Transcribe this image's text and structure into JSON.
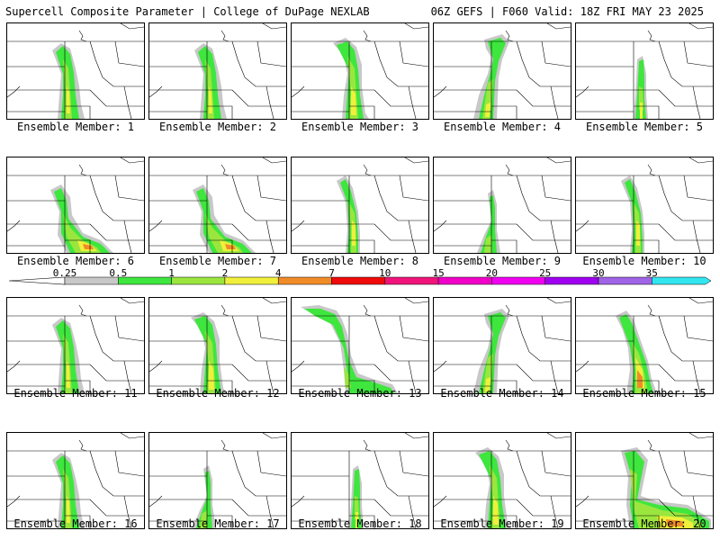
{
  "header": {
    "left": "Supercell Composite Parameter | College of DuPage NEXLAB",
    "right": "06Z GEFS | F060 Valid: 18Z FRI MAY 23 2025"
  },
  "caption_prefix": "Ensemble Member: ",
  "colorbar": {
    "labels": [
      "0.25",
      "0.5",
      "1",
      "2",
      "4",
      "7",
      "10",
      "15",
      "20",
      "25",
      "30",
      "35"
    ],
    "colors": [
      "#c8c8c8",
      "#3ee63e",
      "#9be63e",
      "#f0f03c",
      "#f08c28",
      "#f00a0a",
      "#f0147a",
      "#f000c8",
      "#f000f0",
      "#a000f0",
      "#a064e6",
      "#32e6f0"
    ]
  },
  "members": [
    {
      "id": "1",
      "shape": "a"
    },
    {
      "id": "2",
      "shape": "a"
    },
    {
      "id": "3",
      "shape": "b"
    },
    {
      "id": "4",
      "shape": "c"
    },
    {
      "id": "5",
      "shape": "d"
    },
    {
      "id": "6",
      "shape": "e"
    },
    {
      "id": "7",
      "shape": "e"
    },
    {
      "id": "8",
      "shape": "f"
    },
    {
      "id": "9",
      "shape": "g"
    },
    {
      "id": "10",
      "shape": "f"
    },
    {
      "id": "11",
      "shape": "a"
    },
    {
      "id": "12",
      "shape": "b"
    },
    {
      "id": "13",
      "shape": "h"
    },
    {
      "id": "14",
      "shape": "c"
    },
    {
      "id": "15",
      "shape": "i"
    },
    {
      "id": "16",
      "shape": "a"
    },
    {
      "id": "17",
      "shape": "g"
    },
    {
      "id": "18",
      "shape": "d"
    },
    {
      "id": "19",
      "shape": "b"
    },
    {
      "id": "20",
      "shape": "j"
    }
  ]
}
